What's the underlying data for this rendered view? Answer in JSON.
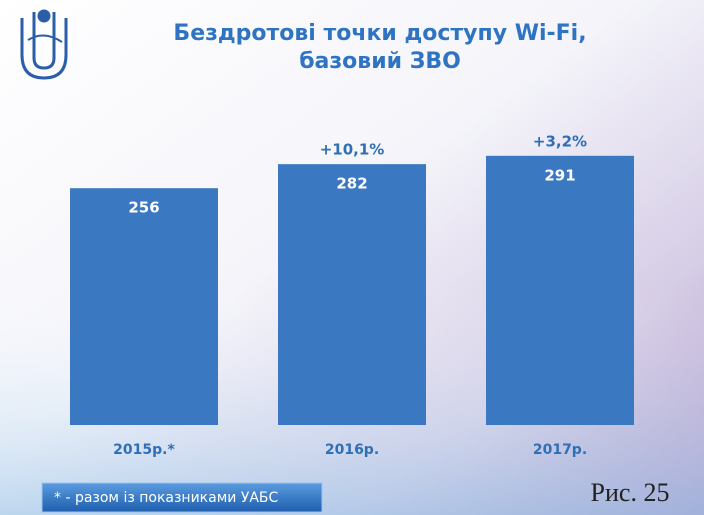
{
  "chart_data": {
    "type": "bar",
    "title": [
      "Бездротові точки доступу Wi-Fi,",
      "базовий ЗВО"
    ],
    "categories": [
      "2015р.*",
      "2016р.",
      "2017р."
    ],
    "values": [
      256,
      282,
      291
    ],
    "changes": [
      null,
      "+10,1%",
      "+3,2%"
    ],
    "color": "#3a78c2",
    "footnote": "* - разом із показниками УАБС",
    "figure_label": "Рис. 25"
  }
}
